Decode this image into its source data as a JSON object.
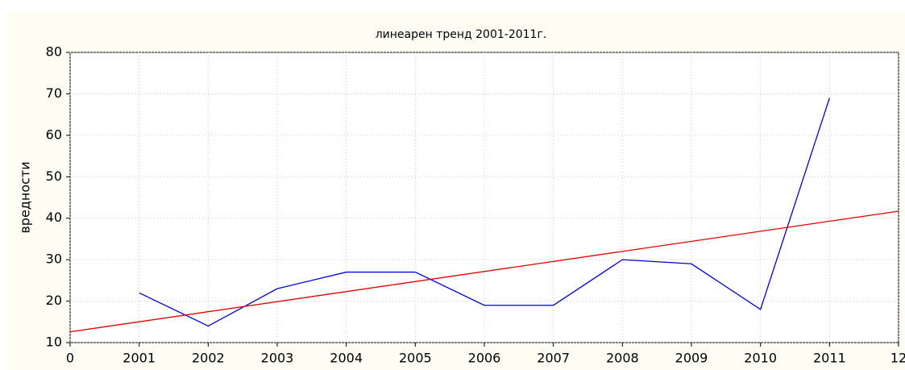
{
  "chart_data": {
    "type": "line",
    "title": "линеарен тренд 2001-2011г.",
    "ylabel": "вредности",
    "xlim": [
      0,
      12
    ],
    "xticks": [
      0,
      {
        "value": 1,
        "label": "2001"
      },
      {
        "value": 2,
        "label": "2002"
      },
      {
        "value": 3,
        "label": "2003"
      },
      {
        "value": 4,
        "label": "2004"
      },
      {
        "value": 5,
        "label": "2005"
      },
      {
        "value": 6,
        "label": "2006"
      },
      {
        "value": 7,
        "label": "2007"
      },
      {
        "value": 8,
        "label": "2008"
      },
      {
        "value": 9,
        "label": "2009"
      },
      {
        "value": 10,
        "label": "2010"
      },
      {
        "value": 11,
        "label": "2011"
      },
      12
    ],
    "ylim": [
      10,
      80
    ],
    "yticks": [
      10,
      20,
      30,
      40,
      50,
      60,
      70,
      80
    ],
    "grid": true,
    "series": [
      {
        "color": "#0000dd",
        "x": [
          1,
          2,
          3,
          4,
          5,
          6,
          7,
          8,
          9,
          10,
          11
        ],
        "values": [
          22,
          14,
          23,
          27,
          27,
          19,
          19,
          30,
          29,
          18,
          69
        ]
      },
      {
        "color": "#e00000",
        "x": [
          0,
          12
        ],
        "values": [
          12.6,
          41.7
        ]
      }
    ]
  }
}
